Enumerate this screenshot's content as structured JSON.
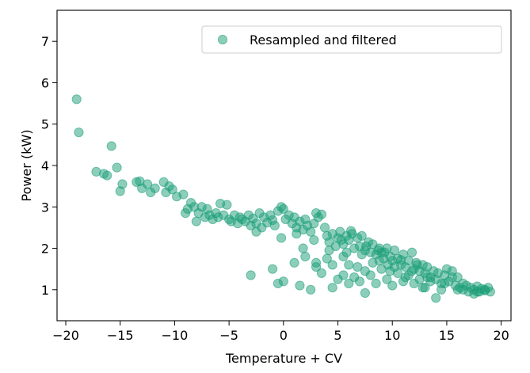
{
  "chart_data": {
    "type": "scatter",
    "xlabel": "Temperature + CV",
    "ylabel": "Power (kW)",
    "xlim": [
      -20.8,
      20.9
    ],
    "ylim": [
      0.25,
      7.75
    ],
    "x_ticks": [
      -20,
      -15,
      -10,
      -5,
      0,
      5,
      10,
      15,
      20
    ],
    "x_tick_labels": [
      "−20",
      "−15",
      "−10",
      "−5",
      "0",
      "5",
      "10",
      "15",
      "20"
    ],
    "y_ticks": [
      1,
      2,
      3,
      4,
      5,
      6,
      7
    ],
    "y_tick_labels": [
      "1",
      "2",
      "3",
      "4",
      "5",
      "6",
      "7"
    ],
    "grid": false,
    "legend_position": "top-right",
    "colors": {
      "marker": "#1b9e77",
      "legend_border": "#cccccc"
    },
    "series": [
      {
        "name": "Resampled and filtered",
        "points": [
          [
            -19.0,
            5.6
          ],
          [
            -18.8,
            4.8
          ],
          [
            -15.8,
            4.47
          ],
          [
            -17.2,
            3.85
          ],
          [
            -16.5,
            3.8
          ],
          [
            -16.2,
            3.76
          ],
          [
            -15.3,
            3.95
          ],
          [
            -14.8,
            3.55
          ],
          [
            -15.0,
            3.38
          ],
          [
            -13.5,
            3.6
          ],
          [
            -13.2,
            3.62
          ],
          [
            -13.0,
            3.45
          ],
          [
            -12.5,
            3.55
          ],
          [
            -12.2,
            3.35
          ],
          [
            -11.8,
            3.45
          ],
          [
            -11.0,
            3.6
          ],
          [
            -10.8,
            3.35
          ],
          [
            -10.5,
            3.5
          ],
          [
            -10.2,
            3.42
          ],
          [
            -9.8,
            3.25
          ],
          [
            -9.2,
            3.3
          ],
          [
            -9.0,
            2.85
          ],
          [
            -8.8,
            2.95
          ],
          [
            -8.5,
            3.1
          ],
          [
            -8.2,
            3.0
          ],
          [
            -8.0,
            2.65
          ],
          [
            -7.8,
            2.85
          ],
          [
            -7.5,
            3.0
          ],
          [
            -7.2,
            2.75
          ],
          [
            -7.0,
            2.95
          ],
          [
            -6.8,
            2.8
          ],
          [
            -6.5,
            2.7
          ],
          [
            -6.2,
            2.85
          ],
          [
            -6.0,
            2.75
          ],
          [
            -5.8,
            3.08
          ],
          [
            -5.5,
            2.8
          ],
          [
            -5.2,
            3.05
          ],
          [
            -5.0,
            2.7
          ],
          [
            -4.8,
            2.65
          ],
          [
            -4.5,
            2.8
          ],
          [
            -4.2,
            2.6
          ],
          [
            -4.0,
            2.75
          ],
          [
            -3.8,
            2.7
          ],
          [
            -3.5,
            2.65
          ],
          [
            -3.2,
            2.8
          ],
          [
            -3.0,
            2.55
          ],
          [
            -2.8,
            2.72
          ],
          [
            -2.5,
            2.6
          ],
          [
            -2.2,
            2.85
          ],
          [
            -2.0,
            2.5
          ],
          [
            -1.8,
            2.75
          ],
          [
            -1.5,
            2.62
          ],
          [
            -1.2,
            2.8
          ],
          [
            -1.0,
            2.68
          ],
          [
            -0.8,
            2.55
          ],
          [
            -0.5,
            2.9
          ],
          [
            -0.2,
            3.0
          ],
          [
            0.0,
            2.95
          ],
          [
            0.2,
            2.7
          ],
          [
            0.5,
            2.8
          ],
          [
            0.8,
            2.6
          ],
          [
            1.0,
            2.75
          ],
          [
            1.2,
            2.5
          ],
          [
            1.5,
            2.65
          ],
          [
            1.8,
            2.45
          ],
          [
            2.0,
            2.7
          ],
          [
            2.2,
            2.55
          ],
          [
            2.5,
            2.4
          ],
          [
            2.8,
            2.6
          ],
          [
            3.0,
            2.85
          ],
          [
            3.2,
            2.75
          ],
          [
            3.5,
            2.82
          ],
          [
            3.8,
            2.5
          ],
          [
            4.0,
            2.3
          ],
          [
            4.2,
            2.15
          ],
          [
            4.5,
            2.35
          ],
          [
            4.8,
            2.05
          ],
          [
            5.0,
            2.25
          ],
          [
            5.2,
            2.4
          ],
          [
            5.5,
            2.1
          ],
          [
            5.8,
            2.3
          ],
          [
            6.0,
            2.2
          ],
          [
            6.2,
            2.42
          ],
          [
            6.5,
            2.0
          ],
          [
            6.8,
            2.25
          ],
          [
            7.0,
            2.05
          ],
          [
            7.2,
            2.3
          ],
          [
            7.5,
            1.95
          ],
          [
            7.8,
            2.15
          ],
          [
            8.0,
            1.9
          ],
          [
            8.2,
            2.1
          ],
          [
            8.5,
            1.85
          ],
          [
            8.8,
            2.0
          ],
          [
            9.0,
            1.9
          ],
          [
            9.2,
            1.75
          ],
          [
            9.5,
            2.0
          ],
          [
            9.8,
            1.8
          ],
          [
            10.0,
            1.7
          ],
          [
            10.2,
            1.95
          ],
          [
            10.5,
            1.75
          ],
          [
            10.8,
            1.6
          ],
          [
            11.0,
            1.85
          ],
          [
            11.2,
            1.55
          ],
          [
            11.5,
            1.7
          ],
          [
            11.8,
            1.9
          ],
          [
            12.0,
            1.5
          ],
          [
            12.2,
            1.65
          ],
          [
            12.5,
            1.45
          ],
          [
            12.8,
            1.6
          ],
          [
            13.0,
            1.4
          ],
          [
            13.2,
            1.55
          ],
          [
            13.5,
            1.3
          ],
          [
            13.8,
            1.45
          ],
          [
            14.0,
            1.25
          ],
          [
            14.2,
            1.4
          ],
          [
            14.5,
            1.15
          ],
          [
            14.8,
            1.35
          ],
          [
            15.0,
            1.5
          ],
          [
            15.2,
            1.2
          ],
          [
            15.5,
            1.45
          ],
          [
            15.8,
            1.1
          ],
          [
            16.0,
            1.3
          ],
          [
            16.2,
            1.05
          ],
          [
            16.5,
            1.0
          ],
          [
            16.8,
            1.1
          ],
          [
            17.0,
            0.95
          ],
          [
            17.2,
            1.05
          ],
          [
            17.5,
            1.0
          ],
          [
            17.8,
            1.08
          ],
          [
            18.0,
            0.95
          ],
          [
            18.2,
            1.02
          ],
          [
            18.5,
            0.98
          ],
          [
            18.8,
            1.05
          ],
          [
            19.0,
            0.95
          ],
          [
            -3.0,
            1.35
          ],
          [
            -1.0,
            1.5
          ],
          [
            -0.5,
            1.15
          ],
          [
            0.0,
            1.2
          ],
          [
            1.0,
            1.65
          ],
          [
            1.5,
            1.1
          ],
          [
            2.0,
            1.8
          ],
          [
            2.5,
            1.0
          ],
          [
            3.0,
            1.55
          ],
          [
            3.5,
            1.4
          ],
          [
            4.0,
            1.75
          ],
          [
            4.5,
            1.6
          ],
          [
            5.0,
            1.25
          ],
          [
            5.5,
            1.35
          ],
          [
            6.0,
            1.6
          ],
          [
            6.5,
            1.3
          ],
          [
            7.0,
            1.2
          ],
          [
            7.5,
            1.45
          ],
          [
            8.0,
            1.35
          ],
          [
            8.5,
            1.15
          ],
          [
            9.0,
            1.5
          ],
          [
            9.5,
            1.25
          ],
          [
            10.0,
            1.1
          ],
          [
            10.5,
            1.4
          ],
          [
            11.0,
            1.2
          ],
          [
            11.5,
            1.35
          ],
          [
            12.0,
            1.15
          ],
          [
            12.5,
            1.25
          ],
          [
            13.0,
            1.05
          ],
          [
            13.5,
            1.2
          ],
          [
            14.0,
            0.8
          ],
          [
            14.5,
            1.0
          ],
          [
            7.5,
            0.92
          ],
          [
            6.0,
            1.15
          ],
          [
            4.5,
            1.05
          ],
          [
            1.8,
            2.0
          ],
          [
            3.0,
            1.65
          ],
          [
            5.5,
            1.8
          ],
          [
            6.8,
            1.55
          ],
          [
            8.2,
            1.65
          ],
          [
            9.8,
            1.45
          ],
          [
            11.2,
            1.3
          ],
          [
            12.8,
            1.05
          ],
          [
            15.5,
            1.3
          ],
          [
            16.5,
            1.15
          ],
          [
            17.5,
            0.9
          ],
          [
            -2.5,
            2.4
          ],
          [
            -0.2,
            2.25
          ],
          [
            1.2,
            2.35
          ],
          [
            2.8,
            2.2
          ],
          [
            4.2,
            1.95
          ],
          [
            5.8,
            1.9
          ],
          [
            7.2,
            1.85
          ],
          [
            8.8,
            1.7
          ],
          [
            10.2,
            1.55
          ],
          [
            11.8,
            1.45
          ],
          [
            13.2,
            1.3
          ],
          [
            14.8,
            1.15
          ],
          [
            16.0,
            1.0
          ],
          [
            17.8,
            0.95
          ],
          [
            18.5,
            1.0
          ],
          [
            6.3,
            2.35
          ],
          [
            7.6,
            2.05
          ],
          [
            9.3,
            1.9
          ],
          [
            10.8,
            1.72
          ],
          [
            12.3,
            1.6
          ],
          [
            5.3,
            2.2
          ],
          [
            8.7,
            1.95
          ],
          [
            9.6,
            1.6
          ]
        ]
      }
    ]
  }
}
